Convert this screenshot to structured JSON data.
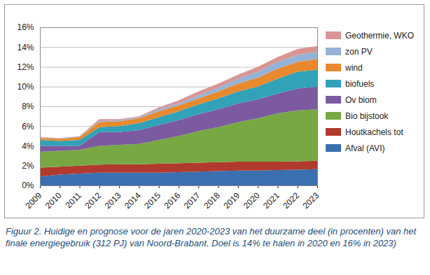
{
  "chart_data": {
    "type": "area",
    "stacked": true,
    "grid": true,
    "legend": "right",
    "caption": "Figuur 2. Huidige en prognose voor de jaren 2020-2023 van het duurzame deel (in procenten) van het finale energiegebruik (312 PJ) van Noord-Brabant. Doel is 14% te halen in 2020 en 16% in 2023)",
    "x": [
      2009,
      2010,
      2011,
      2012,
      2013,
      2014,
      2015,
      2016,
      2017,
      2018,
      2019,
      2020,
      2021,
      2022,
      2023
    ],
    "xlim": [
      2009,
      2023
    ],
    "xticks": [
      2009,
      2010,
      2011,
      2012,
      2013,
      2014,
      2015,
      2016,
      2017,
      2018,
      2019,
      2020,
      2021,
      2022,
      2023
    ],
    "ylim": [
      0,
      16
    ],
    "yticks": [
      {
        "value": 0,
        "label": "0%"
      },
      {
        "value": 2,
        "label": "2%"
      },
      {
        "value": 4,
        "label": "4%"
      },
      {
        "value": 6,
        "label": "6%"
      },
      {
        "value": 8,
        "label": "8%"
      },
      {
        "value": 10,
        "label": "10%"
      },
      {
        "value": 12,
        "label": "12%"
      },
      {
        "value": 14,
        "label": "14%"
      },
      {
        "value": 16,
        "label": "16%"
      }
    ],
    "series": [
      {
        "name": "Geothermie, WKO",
        "color": "#d99594",
        "values": [
          0.05,
          0.05,
          0.05,
          0.2,
          0.1,
          0.1,
          0.2,
          0.3,
          0.4,
          0.4,
          0.4,
          0.5,
          0.5,
          0.6,
          0.6
        ]
      },
      {
        "name": "zon PV",
        "color": "#95b3d7",
        "values": [
          0.05,
          0.05,
          0.05,
          0.1,
          0.1,
          0.1,
          0.2,
          0.2,
          0.3,
          0.4,
          0.5,
          0.6,
          0.7,
          0.7,
          0.7
        ]
      },
      {
        "name": "wind",
        "color": "#e8892e",
        "values": [
          0.2,
          0.2,
          0.3,
          0.5,
          0.5,
          0.5,
          0.6,
          0.6,
          0.6,
          0.7,
          0.8,
          0.9,
          1.0,
          1.0,
          1.1
        ]
      },
      {
        "name": "biofuels",
        "color": "#31a2b8",
        "values": [
          0.6,
          0.5,
          0.6,
          0.5,
          0.6,
          0.7,
          0.8,
          0.9,
          1.0,
          1.1,
          1.2,
          1.3,
          1.5,
          1.7,
          1.7
        ]
      },
      {
        "name": "Ov biom",
        "color": "#7b5aa0",
        "values": [
          0.6,
          0.5,
          0.4,
          1.4,
          1.3,
          1.4,
          1.5,
          1.6,
          1.7,
          1.8,
          1.9,
          1.9,
          2.0,
          2.2,
          2.3
        ]
      },
      {
        "name": "Bio bijstook",
        "color": "#77a844",
        "values": [
          1.6,
          1.6,
          1.6,
          1.9,
          1.95,
          2.05,
          2.4,
          2.75,
          3.2,
          3.55,
          4.0,
          4.4,
          4.9,
          5.15,
          5.2
        ]
      },
      {
        "name": "Houtkachels tot",
        "color": "#b03a2e",
        "values": [
          0.9,
          0.8,
          0.8,
          0.8,
          0.85,
          0.85,
          0.9,
          0.9,
          0.9,
          0.9,
          0.9,
          0.9,
          0.85,
          0.85,
          0.85
        ]
      },
      {
        "name": "Afval (AVI)",
        "color": "#3a6fb0",
        "values": [
          0.9,
          1.1,
          1.2,
          1.3,
          1.3,
          1.3,
          1.3,
          1.35,
          1.4,
          1.45,
          1.5,
          1.5,
          1.55,
          1.6,
          1.65
        ]
      }
    ]
  }
}
